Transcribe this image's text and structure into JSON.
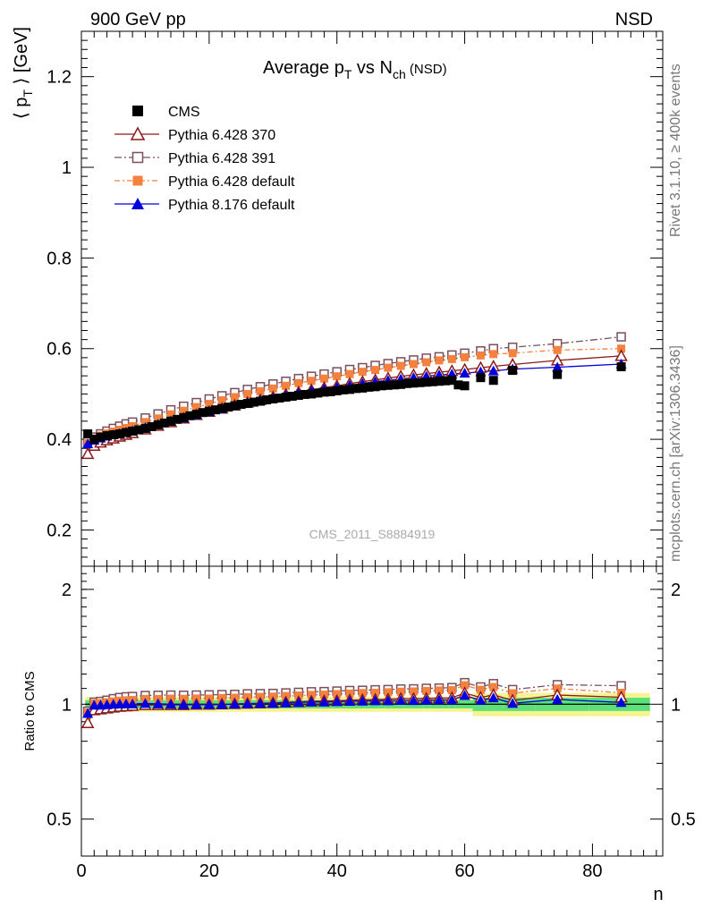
{
  "header": {
    "left": "900 GeV pp",
    "right": "NSD"
  },
  "side_labels": {
    "rivet": "Rivet 3.1.10, ≥ 400k events",
    "mcplots": "mcplots.cern.ch [arXiv:1306.3436]"
  },
  "chart_data": {
    "type": "scatter",
    "title_main": "Average p",
    "title_sub_T": "T",
    "title_vs": " vs N",
    "title_sub_ch": "ch",
    "title_tail": " (NSD)",
    "ylabel_main": "⟨ p",
    "ylabel_sub": "T",
    "ylabel_tail": " ⟩ [GeV]",
    "xlabel": "n",
    "ratio_ylabel": "Ratio to CMS",
    "watermark": "CMS_2011_S8884919",
    "xlim": [
      0,
      91
    ],
    "ylim_main": [
      0.12,
      1.3
    ],
    "ylim_ratio": [
      0.4,
      2.3
    ],
    "ratio_scale": "log",
    "x_ticks": [
      "0",
      "20",
      "40",
      "60",
      "80"
    ],
    "y_ticks_main": [
      "0.2",
      "0.4",
      "0.6",
      "0.8",
      "1",
      "1.2"
    ],
    "y_ticks_ratio": [
      "0.5",
      "1",
      "2"
    ],
    "legend_placement": "top-left",
    "cms": {
      "name": "CMS",
      "color": "#000000",
      "x": [
        1,
        2,
        3,
        4,
        5,
        6,
        7,
        8,
        9,
        10,
        11,
        12,
        13,
        14,
        15,
        16,
        17,
        18,
        19,
        20,
        21,
        22,
        23,
        24,
        25,
        26,
        27,
        28,
        29,
        30,
        31,
        32,
        33,
        34,
        35,
        36,
        37,
        38,
        39,
        40,
        41,
        42,
        43,
        44,
        45,
        46,
        47,
        48,
        49,
        50,
        51,
        52,
        53,
        54,
        55,
        56,
        57,
        58,
        59,
        60,
        62.5,
        64.5,
        67.5,
        74.5,
        84.5
      ],
      "y": [
        0.412,
        0.4,
        0.405,
        0.408,
        0.41,
        0.412,
        0.415,
        0.418,
        0.421,
        0.424,
        0.428,
        0.432,
        0.436,
        0.44,
        0.444,
        0.448,
        0.452,
        0.455,
        0.459,
        0.462,
        0.465,
        0.468,
        0.471,
        0.474,
        0.477,
        0.479,
        0.482,
        0.484,
        0.487,
        0.489,
        0.491,
        0.493,
        0.495,
        0.497,
        0.499,
        0.5,
        0.502,
        0.504,
        0.505,
        0.507,
        0.509,
        0.51,
        0.512,
        0.513,
        0.515,
        0.516,
        0.518,
        0.519,
        0.52,
        0.521,
        0.523,
        0.524,
        0.525,
        0.526,
        0.527,
        0.528,
        0.529,
        0.53,
        0.52,
        0.518,
        0.536,
        0.53,
        0.552,
        0.543,
        0.56
      ]
    },
    "series": [
      {
        "name": "Pythia 6.428 370",
        "color": "#8b1a1a",
        "marker": "triangle-open",
        "dash": "",
        "x": [
          1,
          2,
          3,
          4,
          5,
          6,
          7,
          8,
          10,
          12,
          14,
          16,
          18,
          20,
          22,
          24,
          26,
          28,
          30,
          32,
          34,
          36,
          38,
          40,
          42,
          44,
          46,
          48,
          50,
          52,
          54,
          56,
          58,
          60,
          62.5,
          64.5,
          67.5,
          74.5,
          84.5
        ],
        "y": [
          0.368,
          0.386,
          0.393,
          0.398,
          0.402,
          0.406,
          0.41,
          0.414,
          0.422,
          0.43,
          0.438,
          0.446,
          0.454,
          0.461,
          0.468,
          0.475,
          0.481,
          0.487,
          0.493,
          0.499,
          0.504,
          0.509,
          0.514,
          0.518,
          0.523,
          0.527,
          0.531,
          0.535,
          0.539,
          0.542,
          0.545,
          0.548,
          0.551,
          0.554,
          0.558,
          0.561,
          0.565,
          0.574,
          0.584
        ]
      },
      {
        "name": "Pythia 6.428 391",
        "color": "#7a4f5a",
        "marker": "square-open",
        "dash": "8,3,2,3",
        "x": [
          1,
          2,
          3,
          4,
          5,
          6,
          7,
          8,
          10,
          12,
          14,
          16,
          18,
          20,
          22,
          24,
          26,
          28,
          30,
          32,
          34,
          36,
          38,
          40,
          42,
          44,
          46,
          48,
          50,
          52,
          54,
          56,
          58,
          60,
          62.5,
          64.5,
          67.5,
          74.5,
          84.5
        ],
        "y": [
          0.395,
          0.405,
          0.412,
          0.418,
          0.424,
          0.429,
          0.434,
          0.438,
          0.447,
          0.456,
          0.465,
          0.473,
          0.481,
          0.489,
          0.496,
          0.503,
          0.51,
          0.516,
          0.522,
          0.528,
          0.534,
          0.539,
          0.544,
          0.549,
          0.554,
          0.558,
          0.563,
          0.567,
          0.571,
          0.575,
          0.579,
          0.582,
          0.586,
          0.59,
          0.595,
          0.6,
          0.603,
          0.611,
          0.626
        ]
      },
      {
        "name": "Pythia 6.428 default",
        "color": "#f5813f",
        "marker": "square-filled",
        "dash": "6,3,2,3",
        "x": [
          1,
          2,
          3,
          4,
          5,
          6,
          7,
          8,
          10,
          12,
          14,
          16,
          18,
          20,
          22,
          24,
          26,
          28,
          30,
          32,
          34,
          36,
          38,
          40,
          42,
          44,
          46,
          48,
          50,
          52,
          54,
          56,
          58,
          60,
          62.5,
          64.5,
          67.5,
          74.5,
          84.5
        ],
        "y": [
          0.392,
          0.402,
          0.408,
          0.413,
          0.417,
          0.421,
          0.425,
          0.429,
          0.438,
          0.446,
          0.455,
          0.463,
          0.471,
          0.478,
          0.486,
          0.493,
          0.5,
          0.506,
          0.512,
          0.518,
          0.524,
          0.529,
          0.534,
          0.539,
          0.544,
          0.549,
          0.553,
          0.558,
          0.562,
          0.566,
          0.57,
          0.574,
          0.577,
          0.581,
          0.585,
          0.588,
          0.59,
          0.597,
          0.6
        ]
      },
      {
        "name": "Pythia 8.176 default",
        "color": "#0000dd",
        "marker": "triangle-filled",
        "dash": "",
        "x": [
          1,
          2,
          3,
          4,
          5,
          6,
          7,
          8,
          10,
          12,
          14,
          16,
          18,
          20,
          22,
          24,
          26,
          28,
          30,
          32,
          34,
          36,
          38,
          40,
          42,
          44,
          46,
          48,
          50,
          52,
          54,
          56,
          58,
          60,
          62.5,
          64.5,
          67.5,
          74.5,
          84.5
        ],
        "y": [
          0.39,
          0.398,
          0.403,
          0.407,
          0.41,
          0.413,
          0.416,
          0.419,
          0.426,
          0.433,
          0.44,
          0.447,
          0.454,
          0.461,
          0.467,
          0.474,
          0.48,
          0.486,
          0.491,
          0.497,
          0.502,
          0.507,
          0.511,
          0.515,
          0.519,
          0.523,
          0.527,
          0.53,
          0.533,
          0.536,
          0.539,
          0.542,
          0.544,
          0.546,
          0.549,
          0.551,
          0.555,
          0.559,
          0.566
        ]
      }
    ]
  }
}
